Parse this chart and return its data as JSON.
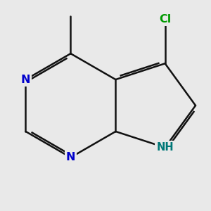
{
  "bg_color": "#e9e9e9",
  "bond_color": "#111111",
  "n_color": "#0000cc",
  "cl_color": "#009900",
  "nh_color": "#007777",
  "lw": 1.8,
  "fs": 11.5,
  "dbo": 0.055,
  "sc": 1.28,
  "xlim": [
    -2.6,
    2.6
  ],
  "ylim": [
    -2.6,
    2.6
  ]
}
